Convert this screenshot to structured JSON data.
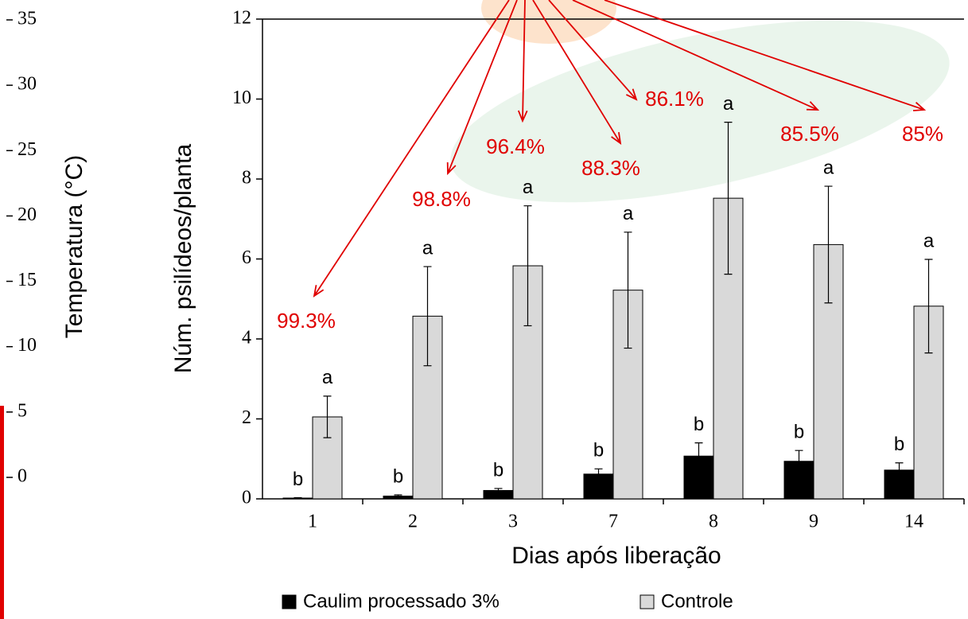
{
  "chart_data": {
    "type": "bar",
    "xlabel": "Dias após liberação",
    "ylabel": "Núm. psilídeos/planta",
    "categories": [
      "1",
      "2",
      "3",
      "7",
      "8",
      "9",
      "14"
    ],
    "series": [
      {
        "name": "Caulim processado 3%",
        "color": "#000000",
        "values": [
          0.02,
          0.07,
          0.21,
          0.62,
          1.07,
          0.94,
          0.72
        ],
        "errors": [
          0.01,
          0.03,
          0.05,
          0.13,
          0.33,
          0.27,
          0.18
        ],
        "letters": [
          "b",
          "b",
          "b",
          "b",
          "b",
          "b",
          "b"
        ]
      },
      {
        "name": "Controle",
        "color": "#d9d9d9",
        "values": [
          2.05,
          4.57,
          5.83,
          5.22,
          7.52,
          6.36,
          4.82
        ],
        "errors": [
          0.52,
          1.24,
          1.5,
          1.45,
          1.9,
          1.46,
          1.17
        ],
        "letters": [
          "a",
          "a",
          "a",
          "a",
          "a",
          "a",
          "a"
        ]
      }
    ],
    "annotations": [
      "99.3%",
      "98.8%",
      "96.4%",
      "88.3%",
      "86.1%",
      "85.5%",
      "85%"
    ],
    "ylim": [
      0,
      12
    ],
    "yticks": [
      0,
      2,
      4,
      6,
      8,
      10,
      12
    ]
  },
  "temperature_axis": {
    "label": "Temperatura (°C)",
    "ylim": [
      0,
      35
    ],
    "yticks": [
      0,
      5,
      10,
      15,
      20,
      25,
      30,
      35
    ]
  }
}
